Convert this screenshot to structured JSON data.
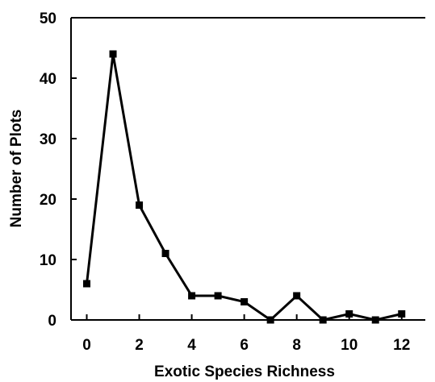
{
  "chart_data": {
    "type": "line",
    "title": "",
    "xlabel": "Exotic Species Richness",
    "ylabel": "Number of Plots",
    "x": [
      0,
      1,
      2,
      3,
      4,
      5,
      6,
      7,
      8,
      9,
      10,
      11,
      12
    ],
    "series": [
      {
        "values": [
          6,
          44,
          19,
          11,
          4,
          4,
          3,
          0,
          4,
          0,
          1,
          0,
          1
        ]
      }
    ],
    "xlim": [
      -0.6,
      12.9
    ],
    "ylim": [
      0,
      50
    ],
    "xticks": [
      "0",
      "2",
      "4",
      "6",
      "8",
      "10",
      "12"
    ],
    "yticks": [
      "0",
      "10",
      "20",
      "30",
      "40",
      "50"
    ],
    "grid": false,
    "legend": "none",
    "color": "#000000"
  }
}
